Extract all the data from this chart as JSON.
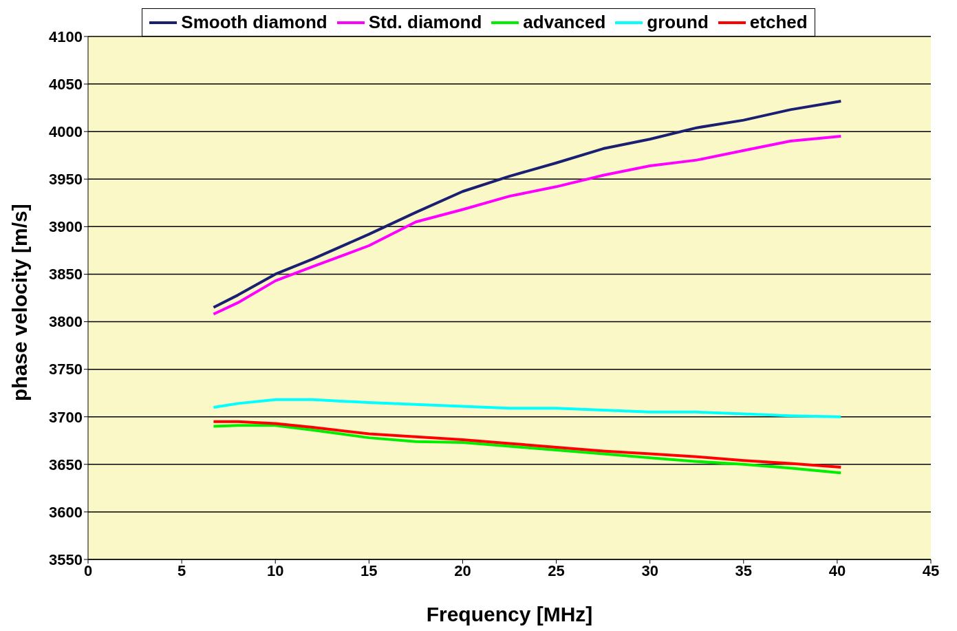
{
  "chart_data": {
    "type": "line",
    "xlabel": "Frequency [MHz]",
    "ylabel": "phase velocity [m/s]",
    "x": [
      6.7,
      8,
      10,
      12,
      15,
      17.5,
      20,
      22.5,
      25,
      27.5,
      30,
      32.5,
      35,
      37.5,
      40.2
    ],
    "series": [
      {
        "name": "Smooth diamond",
        "color": "#1a1f71",
        "values": [
          3815,
          3828,
          3850,
          3866,
          3892,
          3915,
          3937,
          3953,
          3967,
          3982,
          3992,
          4004,
          4012,
          4023,
          4032
        ]
      },
      {
        "name": "Std. diamond",
        "color": "#ff00ff",
        "values": [
          3808,
          3820,
          3843,
          3858,
          3880,
          3905,
          3918,
          3932,
          3942,
          3954,
          3964,
          3970,
          3980,
          3990,
          3995
        ]
      },
      {
        "name": "advanced",
        "color": "#00ee00",
        "values": [
          3690,
          3691,
          3691,
          3686,
          3678,
          3674,
          3673,
          3669,
          3665,
          3661,
          3657,
          3653,
          3650,
          3646,
          3641
        ]
      },
      {
        "name": "ground",
        "color": "#00ffff",
        "values": [
          3710,
          3714,
          3718,
          3718,
          3715,
          3713,
          3711,
          3709,
          3709,
          3707,
          3705,
          3705,
          3703,
          3701,
          3700
        ]
      },
      {
        "name": "etched",
        "color": "#ff0000",
        "values": [
          3695,
          3695,
          3693,
          3689,
          3682,
          3679,
          3676,
          3672,
          3668,
          3664,
          3661,
          3658,
          3654,
          3651,
          3647
        ]
      }
    ],
    "xlim": [
      0,
      45
    ],
    "xticks": [
      0,
      5,
      10,
      15,
      20,
      25,
      30,
      35,
      40,
      45
    ],
    "ylim": [
      3550,
      4100
    ],
    "yticks": [
      3550,
      3600,
      3650,
      3700,
      3750,
      3800,
      3850,
      3900,
      3950,
      4000,
      4050,
      4100
    ],
    "grid": "y",
    "legend": "top",
    "marker": "none",
    "line_style": "solid"
  }
}
